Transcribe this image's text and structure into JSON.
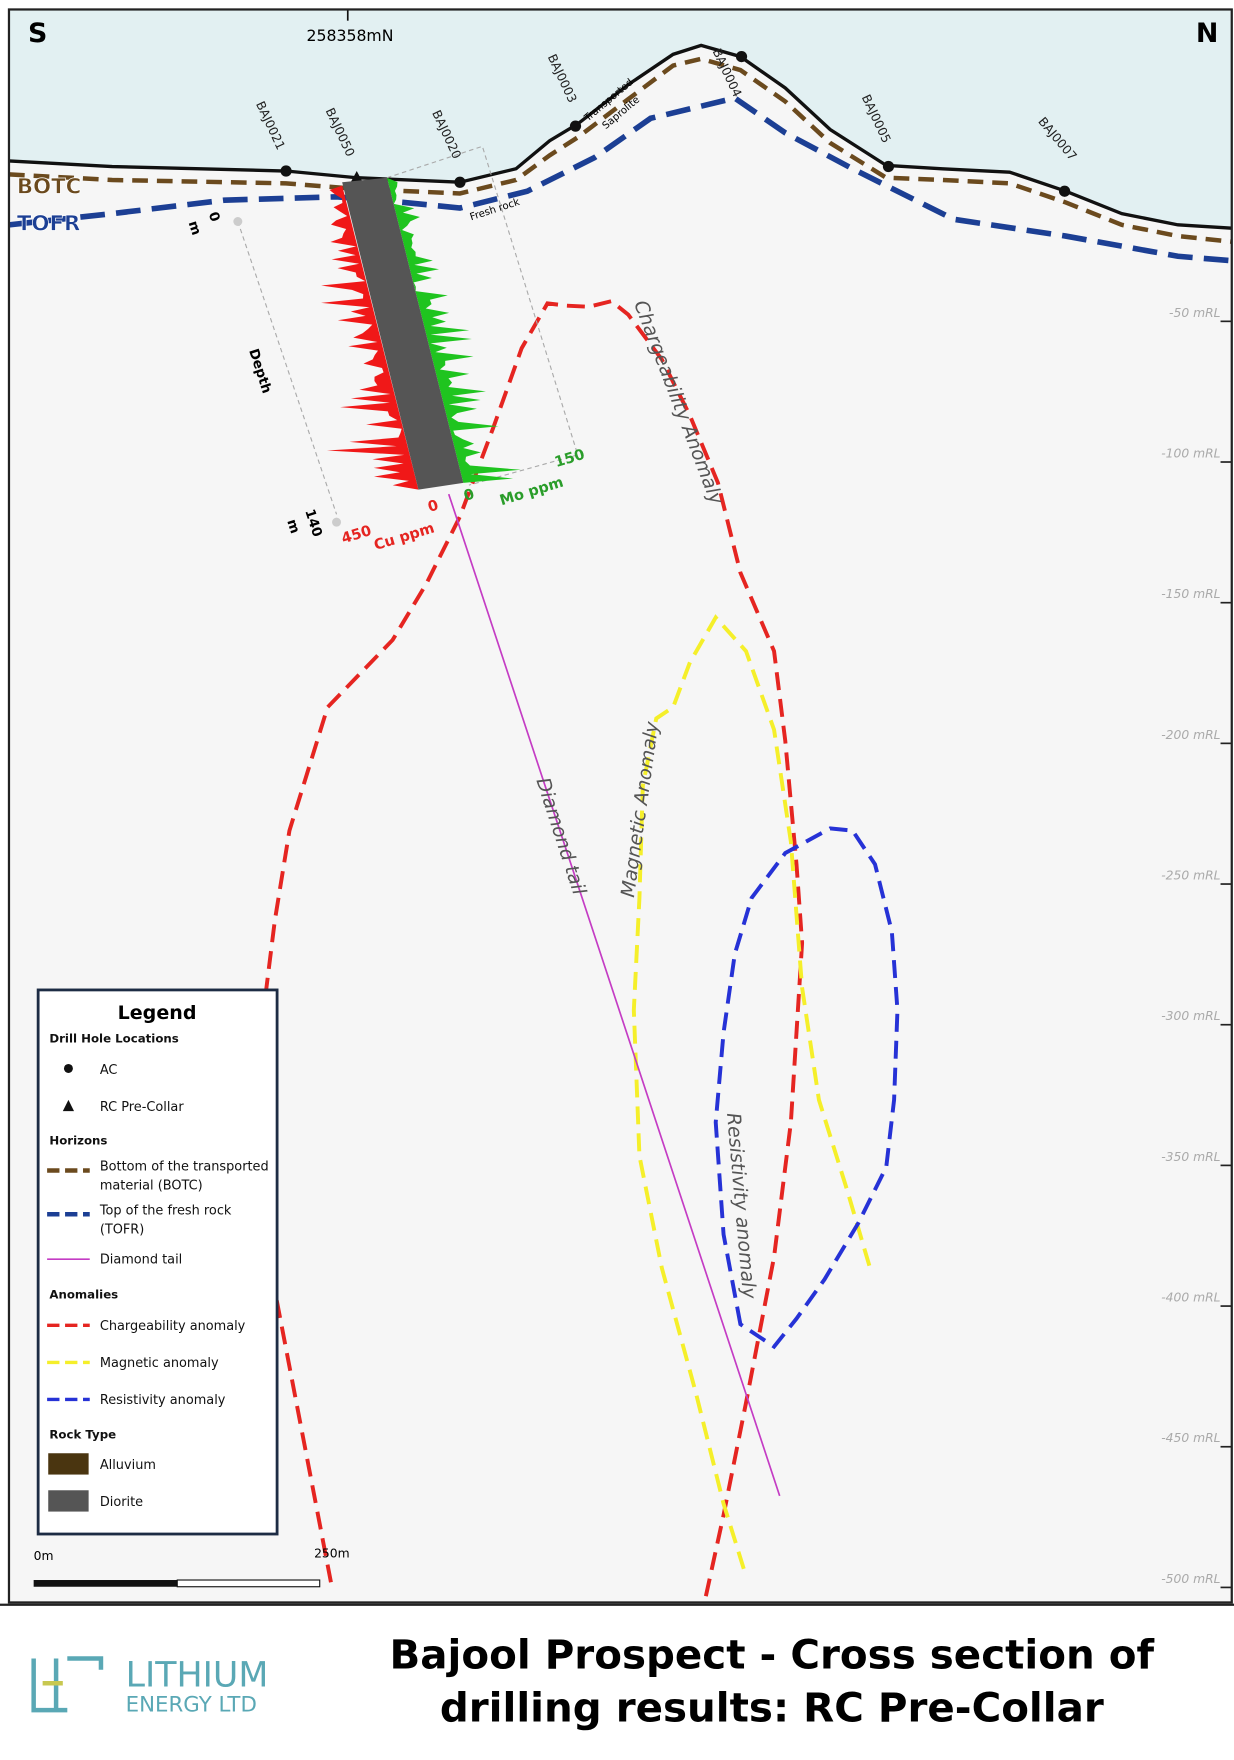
{
  "map": {
    "compass": {
      "south": "S",
      "north": "N"
    },
    "northing": "258358mN",
    "drill_holes": [
      "BAJ0021",
      "BAJ0050",
      "BAJ0020",
      "BAJ0003",
      "BAJ0004",
      "BAJ0005",
      "BAJ0007"
    ],
    "horizon_labels": {
      "botc": "BOTC",
      "tofr": "TOFR"
    },
    "annotations": {
      "transported": "Transported",
      "saprolite": "Saprolite",
      "fresh_rock": "Fresh rock",
      "chargeability": "Chargeability Anomaly",
      "magnetic": "Magnetic Anomaly",
      "diamond": "Diamond tail",
      "resistivity": "Resistivity anomaly"
    },
    "depth_axis": {
      "title": "Depth",
      "top": 0,
      "top_unit": "m",
      "bottom": 140,
      "bottom_unit": "m"
    },
    "cu_axis": {
      "title": "Cu ppm",
      "min": 0,
      "max": 450
    },
    "mo_axis": {
      "title": "Mo ppm",
      "min": 0,
      "max": 150
    },
    "elevation_labels": [
      "-50 mRL",
      "-100 mRL",
      "-150 mRL",
      "-200 mRL",
      "-250 mRL",
      "-300 mRL",
      "-350 mRL",
      "-400 mRL",
      "-450 mRL",
      "-500 mRL"
    ],
    "scale_bar": {
      "start": "0m",
      "end": "250m"
    }
  },
  "legend": {
    "title": "Legend",
    "drill_hole_heading": "Drill Hole Locations",
    "ac": "AC",
    "rc": "RC Pre-Collar",
    "horizons_heading": "Horizons",
    "botc_1": "Bottom of the transported",
    "botc_2": "material (BOTC)",
    "tofr_1": "Top of the fresh rock",
    "tofr_2": "(TOFR)",
    "diamond": "Diamond tail",
    "anomalies_heading": "Anomalies",
    "chargeability": "Chargeability anomaly",
    "magnetic": "Magnetic anomaly",
    "resistivity": "Resistivity anomaly",
    "rock_heading": "Rock Type",
    "alluvium": "Alluvium",
    "diorite": "Diorite"
  },
  "footer": {
    "logo_main": "LITHIUM",
    "logo_sub": "ENERGY LTD",
    "title_line1": "Bajool Prospect - Cross section of",
    "title_line2": "drilling results: RC Pre-Collar"
  }
}
